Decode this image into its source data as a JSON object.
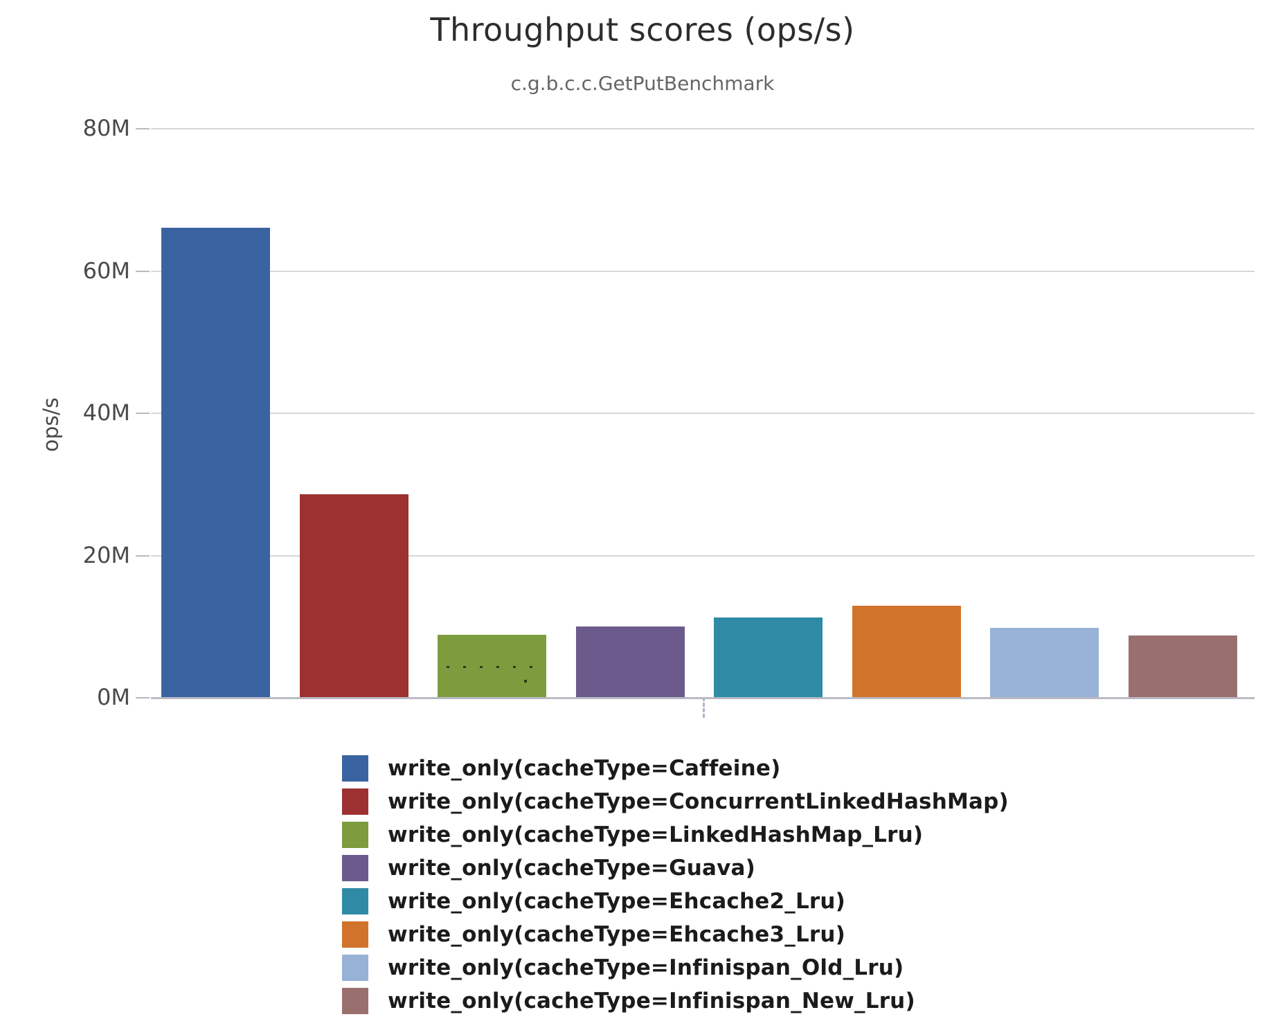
{
  "title": "Throughput scores (ops/s)",
  "subtitle": "c.g.b.c.c.GetPutBenchmark",
  "chart_data": {
    "type": "bar",
    "title": "Throughput scores (ops/s)",
    "subtitle": "c.g.b.c.c.GetPutBenchmark",
    "xlabel": "",
    "ylabel": "ops/s",
    "ylim": [
      0,
      80000000
    ],
    "grid": true,
    "legend_position": "bottom",
    "yticks": [
      {
        "value": 0,
        "label": "0M"
      },
      {
        "value": 20000000,
        "label": "20M"
      },
      {
        "value": 40000000,
        "label": "40M"
      },
      {
        "value": 60000000,
        "label": "60M"
      },
      {
        "value": 80000000,
        "label": "80M"
      }
    ],
    "series": [
      {
        "label": "write_only(cacheType=Caffeine)",
        "value": 66000000,
        "color": "#3A63A2",
        "pattern": "solid"
      },
      {
        "label": "write_only(cacheType=ConcurrentLinkedHashMap)",
        "value": 28500000,
        "color": "#9D3132",
        "pattern": "solid"
      },
      {
        "label": "write_only(cacheType=LinkedHashMap_Lru)",
        "value": 8800000,
        "color": "#7D9C3E",
        "pattern": "dotted-line"
      },
      {
        "label": "write_only(cacheType=Guava)",
        "value": 9900000,
        "color": "#6D5A8C",
        "pattern": "solid"
      },
      {
        "label": "write_only(cacheType=Ehcache2_Lru)",
        "value": 11200000,
        "color": "#2F8BA5",
        "pattern": "solid"
      },
      {
        "label": "write_only(cacheType=Ehcache3_Lru)",
        "value": 12800000,
        "color": "#D2732C",
        "pattern": "solid"
      },
      {
        "label": "write_only(cacheType=Infinispan_Old_Lru)",
        "value": 9700000,
        "color": "#98B2D6",
        "pattern": "stipple"
      },
      {
        "label": "write_only(cacheType=Infinispan_New_Lru)",
        "value": 8700000,
        "color": "#9A706E",
        "pattern": "solid"
      }
    ]
  }
}
